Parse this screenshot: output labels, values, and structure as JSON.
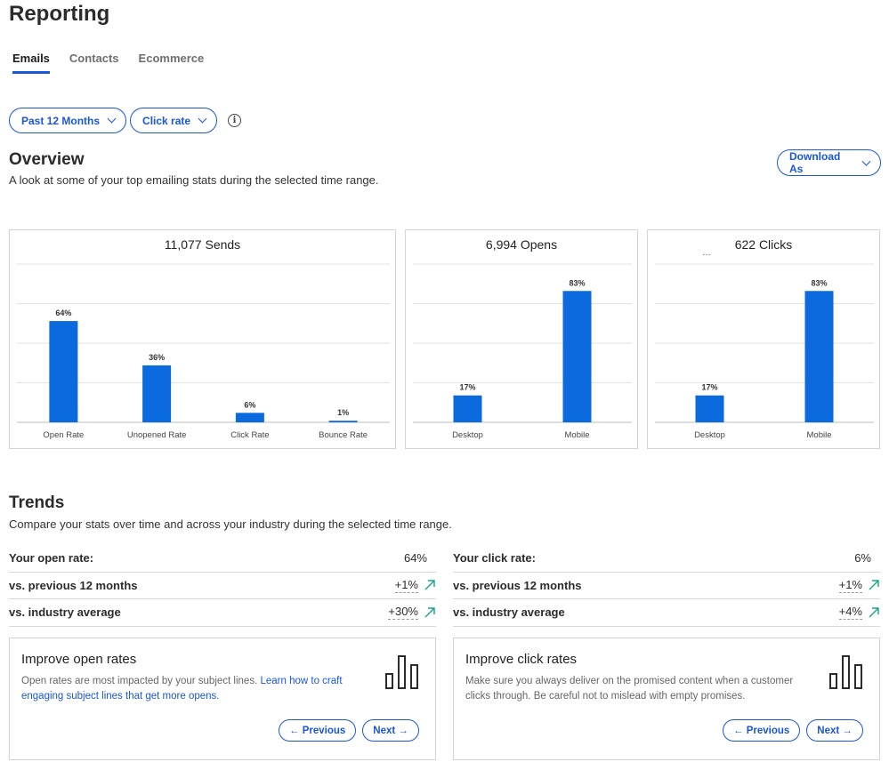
{
  "page": {
    "title": "Reporting"
  },
  "tabs": [
    {
      "label": "Emails",
      "active": true
    },
    {
      "label": "Contacts",
      "active": false
    },
    {
      "label": "Ecommerce",
      "active": false
    }
  ],
  "filters": {
    "range_label": "Past 12 Months",
    "metric_label": "Click rate",
    "info_glyph": "i"
  },
  "overview": {
    "title": "Overview",
    "subtitle": "A look at some of your top emailing stats during the selected time range.",
    "download_label": "Download As"
  },
  "chart_data": [
    {
      "type": "bar",
      "title": "11,077 Sends",
      "categories": [
        "Open Rate",
        "Unopened Rate",
        "Click Rate",
        "Bounce Rate"
      ],
      "values": [
        64,
        36,
        6,
        1
      ],
      "value_labels": [
        "64%",
        "36%",
        "6%",
        "1%"
      ],
      "ylim": [
        0,
        100
      ],
      "color": "#0b6bde",
      "grid": true
    },
    {
      "type": "bar",
      "title": "6,994 Opens",
      "categories": [
        "Desktop",
        "Mobile"
      ],
      "values": [
        17,
        83
      ],
      "value_labels": [
        "17%",
        "83%"
      ],
      "ylim": [
        0,
        100
      ],
      "color": "#0b6bde",
      "grid": true
    },
    {
      "type": "bar",
      "title": "622 Clicks",
      "categories": [
        "Desktop",
        "Mobile"
      ],
      "values": [
        17,
        83
      ],
      "value_labels": [
        "17%",
        "83%"
      ],
      "ylim": [
        0,
        100
      ],
      "color": "#0b6bde",
      "grid": true
    }
  ],
  "clicks_card_ellipsis": "…",
  "trends": {
    "title": "Trends",
    "subtitle": "Compare your stats over time and across your industry during the selected time range.",
    "open": {
      "label": "Your open rate:",
      "value": "64%",
      "prev_label": "vs. previous 12 months",
      "prev_value": "+1%",
      "ind_label": "vs. industry average",
      "ind_value": "+30%"
    },
    "click": {
      "label": "Your click rate:",
      "value": "6%",
      "prev_label": "vs. previous 12 months",
      "prev_value": "+1%",
      "ind_label": "vs. industry average",
      "ind_value": "+4%"
    }
  },
  "tips": {
    "open": {
      "title": "Improve open rates",
      "body": "Open rates are most impacted by your subject lines.",
      "link": "Learn how to craft engaging subject lines that get more opens.",
      "prev_label": "← Previous",
      "next_label": "Next →"
    },
    "click": {
      "title": "Improve click rates",
      "body": "Make sure you always deliver on the promised content when a customer clicks through. Be careful not to mislead with empty promises.",
      "prev_label": "← Previous",
      "next_label": "Next →"
    }
  },
  "colors": {
    "accent": "#1a56db",
    "bar": "#0b6bde",
    "trend_up": "#1aa38c"
  }
}
